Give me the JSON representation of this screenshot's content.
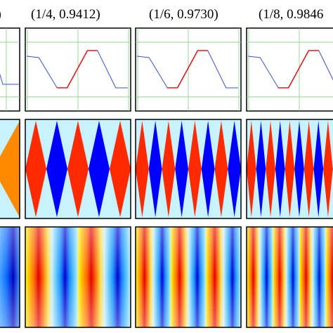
{
  "columns": [
    {
      "label": "0)"
    },
    {
      "label": "(1/4, 0.9412)"
    },
    {
      "label": "(1/6, 0.9730)"
    },
    {
      "label": "(1/8, 0.9846"
    }
  ],
  "colors": {
    "frame": "#000000",
    "grid": "#7fcf7f",
    "line_blue": "#3b4fd6",
    "line_red": "#e01818",
    "panel_bg": "#c7f3ff",
    "diamond_blue": "#0000ff",
    "diamond_red": "#ff2a00",
    "diamond_orange": "#ff8a00"
  }
}
